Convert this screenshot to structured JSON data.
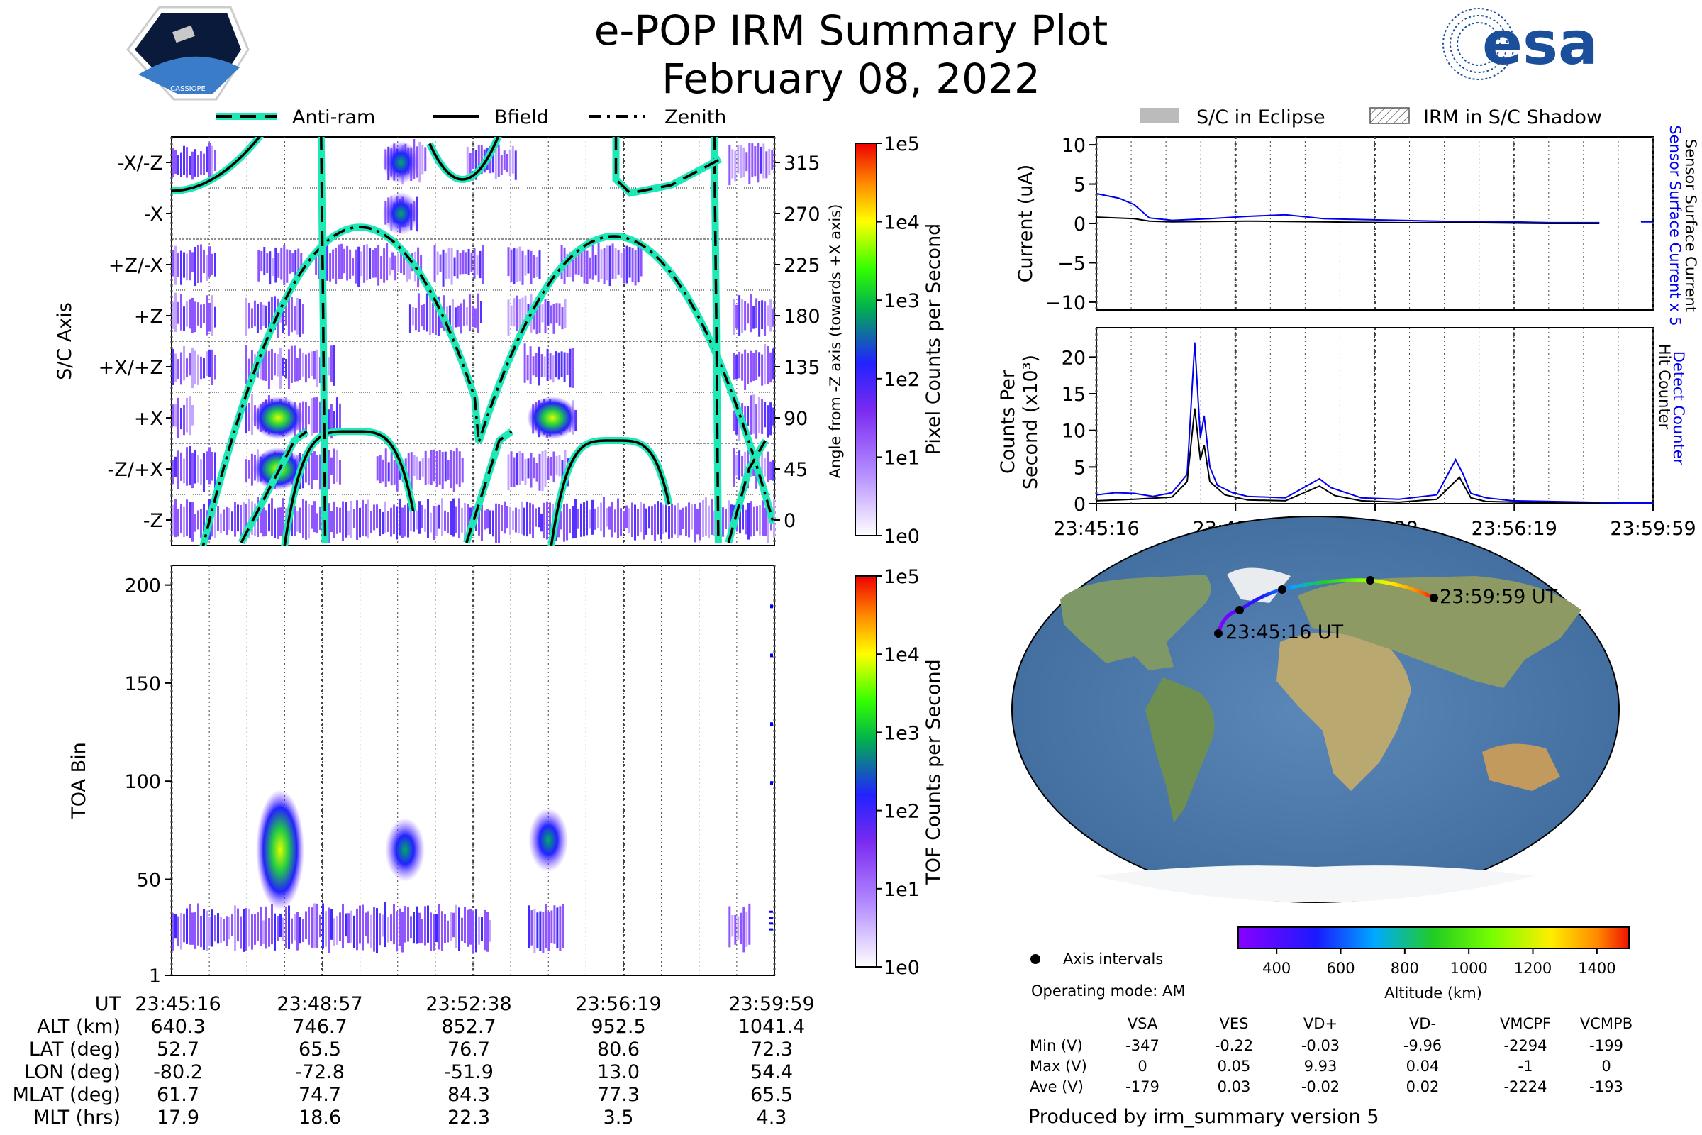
{
  "header": {
    "title": "e-POP IRM Summary Plot",
    "date": "February 08, 2022",
    "mission_badge_text": "CASSIOPE",
    "agency_logo_text": "esa"
  },
  "colors": {
    "line_teal": "#1de9b6",
    "sensor_blue": "#0000ee",
    "accent_black": "#000000"
  },
  "direction_legend": [
    "Anti-ram",
    "Bfield",
    "Zenith"
  ],
  "housekeeping_legend": [
    "S/C in Eclipse",
    "IRM in S/C Shadow"
  ],
  "time_ticks": [
    "23:45:16",
    "23:48:57",
    "23:52:38",
    "23:56:19",
    "23:59:59"
  ],
  "chart_data": [
    {
      "type": "heatmap",
      "name": "pixel-map",
      "title": "",
      "ylabel": "S/C Axis",
      "y2label": "Angle from -Z axis (towards +X axis)",
      "categories": [
        "-X/-Z",
        "-X",
        "+Z/-X",
        "+Z",
        "+X/+Z",
        "+X",
        "-Z/+X",
        "-Z"
      ],
      "angle_ticks": [
        315,
        270,
        225,
        180,
        135,
        90,
        45,
        0
      ],
      "colorbar_label": "Pixel Counts per Second",
      "colorbar_ticks": [
        "1e5",
        "1e4",
        "1e3",
        "1e2",
        "1e1",
        "1e0"
      ],
      "xlim_minutes": [
        0,
        14.72
      ],
      "anti_ram_times_min": [
        3.7,
        13.3
      ],
      "zenith_peaks": [
        {
          "t": 4.6,
          "angle": 258
        },
        {
          "t": 10.8,
          "angle": 250
        }
      ],
      "hot_spots": [
        {
          "t": 2.6,
          "axis": "+X",
          "level": "high"
        },
        {
          "t": 2.6,
          "axis": "-Z/+X",
          "level": "high"
        },
        {
          "t": 9.3,
          "axis": "+X",
          "level": "high"
        },
        {
          "t": 5.6,
          "axis": "-X/-Z",
          "level": "mid"
        },
        {
          "t": 5.6,
          "axis": "-X",
          "level": "mid"
        }
      ]
    },
    {
      "type": "heatmap",
      "name": "toa-map",
      "ylabel": "TOA Bin",
      "yticks": [
        1,
        50,
        100,
        150,
        200
      ],
      "ylim": [
        1,
        210
      ],
      "colorbar_label": "TOF Counts per Second",
      "colorbar_ticks": [
        "1e5",
        "1e4",
        "1e3",
        "1e2",
        "1e1",
        "1e0"
      ],
      "blobs": [
        {
          "t": 2.65,
          "toa": 65,
          "level": "high"
        },
        {
          "t": 5.7,
          "toa": 65,
          "level": "mid"
        },
        {
          "t": 9.2,
          "toa": 70,
          "level": "mid"
        }
      ],
      "baseline_toa": 25
    },
    {
      "type": "line",
      "name": "current-plot",
      "ylabel": "Current (uA)",
      "yticks": [
        10,
        5,
        0,
        -5,
        -10
      ],
      "ylim": [
        -11,
        11
      ],
      "right_labels": [
        "Sensor Surface Current x 5",
        "Sensor Surface Current"
      ],
      "series": [
        {
          "name": "Sensor Surface Current x 5",
          "color": "blue",
          "x": [
            0,
            0.6,
            1,
            1.4,
            2,
            3,
            4,
            5,
            6,
            7,
            8,
            9,
            10,
            11,
            12,
            13.3,
            14,
            14.4,
            14.72
          ],
          "y": [
            3.8,
            3.2,
            2.4,
            0.7,
            0.4,
            0.6,
            0.9,
            1.1,
            0.6,
            0.5,
            0.4,
            0.3,
            0.2,
            0.2,
            0.1,
            0.1,
            null,
            0.2,
            0.2
          ]
        },
        {
          "name": "Sensor Surface Current",
          "color": "black",
          "x": [
            0,
            1,
            1.4,
            2,
            4,
            6,
            8,
            10,
            12,
            13.3
          ],
          "y": [
            0.8,
            0.6,
            0.3,
            0.2,
            0.3,
            0.2,
            0.1,
            0.1,
            0.0,
            0.0
          ]
        }
      ]
    },
    {
      "type": "line",
      "name": "counter-plot",
      "ylabel": "Counts Per Second (x10³)",
      "yticks": [
        20,
        15,
        10,
        5,
        0
      ],
      "ylim": [
        0,
        24
      ],
      "right_labels": [
        "Detect Counter",
        "Hit Counter"
      ],
      "series": [
        {
          "name": "Detect Counter",
          "color": "blue",
          "x": [
            0,
            0.5,
            1,
            1.5,
            2,
            2.4,
            2.6,
            2.75,
            2.85,
            3.0,
            3.2,
            3.6,
            4,
            5,
            5.9,
            6.2,
            7,
            8,
            9,
            9.5,
            9.7,
            9.9,
            10.3,
            11,
            12,
            13,
            14,
            14.72
          ],
          "y": [
            1.2,
            1.5,
            1.4,
            1.0,
            1.5,
            4,
            22,
            9,
            12,
            5,
            2.5,
            1.5,
            1.0,
            0.8,
            3.4,
            2.2,
            0.8,
            0.6,
            1.2,
            6,
            4,
            1.4,
            0.8,
            0.4,
            0.3,
            0.2,
            0.1,
            0.1
          ]
        },
        {
          "name": "Hit Counter",
          "color": "black",
          "x": [
            0,
            1,
            2,
            2.4,
            2.6,
            2.75,
            2.85,
            3.0,
            3.4,
            4,
            5,
            5.9,
            6.3,
            7,
            8,
            9,
            9.6,
            9.9,
            10.3,
            12,
            13.3
          ],
          "y": [
            0.4,
            0.6,
            0.9,
            3,
            13,
            6,
            8,
            3,
            1.2,
            0.5,
            0.4,
            2.4,
            1.1,
            0.4,
            0.2,
            0.6,
            3.6,
            0.8,
            0.3,
            0.1,
            0.05
          ]
        }
      ]
    }
  ],
  "map": {
    "start_label": "23:45:16 UT",
    "end_label": "23:59:59 UT",
    "colorbar_label": "Altitude (km)",
    "colorbar_ticks": [
      "400",
      "600",
      "800",
      "1000",
      "1200",
      "1400"
    ],
    "legend_axis_intervals": "Axis intervals",
    "operating_mode": "Operating mode: AM"
  },
  "ephemeris": {
    "rows": [
      {
        "label": "UT",
        "values": [
          "23:45:16",
          "23:48:57",
          "23:52:38",
          "23:56:19",
          "23:59:59"
        ]
      },
      {
        "label": "ALT (km)",
        "values": [
          "640.3",
          "746.7",
          "852.7",
          "952.5",
          "1041.4"
        ]
      },
      {
        "label": "LAT (deg)",
        "values": [
          "52.7",
          "65.5",
          "76.7",
          "80.6",
          "72.3"
        ]
      },
      {
        "label": "LON (deg)",
        "values": [
          "-80.2",
          "-72.8",
          "-51.9",
          "13.0",
          "54.4"
        ]
      },
      {
        "label": "MLAT (deg)",
        "values": [
          "61.7",
          "74.7",
          "84.3",
          "77.3",
          "65.5"
        ]
      },
      {
        "label": "MLT (hrs)",
        "values": [
          "17.9",
          "18.6",
          "22.3",
          "3.5",
          "4.3"
        ]
      }
    ]
  },
  "voltages": {
    "columns": [
      "VSA",
      "VES",
      "VD+",
      "VD-",
      "VMCPF",
      "VCMPB"
    ],
    "rows": [
      {
        "label": "Min (V)",
        "values": [
          "-347",
          "-0.22",
          "-0.03",
          "-9.96",
          "-2294",
          "-199"
        ]
      },
      {
        "label": "Max (V)",
        "values": [
          "0",
          "0.05",
          "9.93",
          "0.04",
          "-1",
          "0"
        ]
      },
      {
        "label": "Ave (V)",
        "values": [
          "-179",
          "0.03",
          "-0.02",
          "0.02",
          "-2224",
          "-193"
        ]
      }
    ]
  },
  "footer": "Produced by irm_summary version 5"
}
